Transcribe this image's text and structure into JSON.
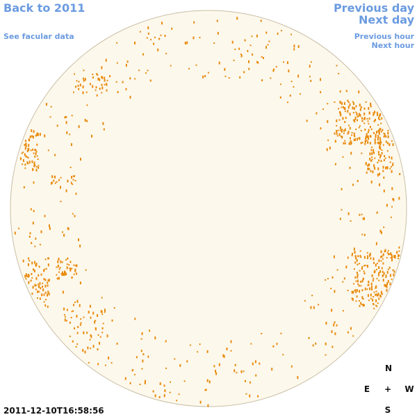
{
  "links": {
    "back_year": "Back to 2011",
    "facular_data": "See facular data",
    "previous_day": "Previous day",
    "next_day": "Next day",
    "previous_hour": "Previous hour",
    "next_hour": "Next hour"
  },
  "timestamp": "2011-12-10T16:58:56",
  "compass": {
    "north": "N",
    "east": "E",
    "center": "+",
    "west": "W",
    "south": "S"
  }
}
